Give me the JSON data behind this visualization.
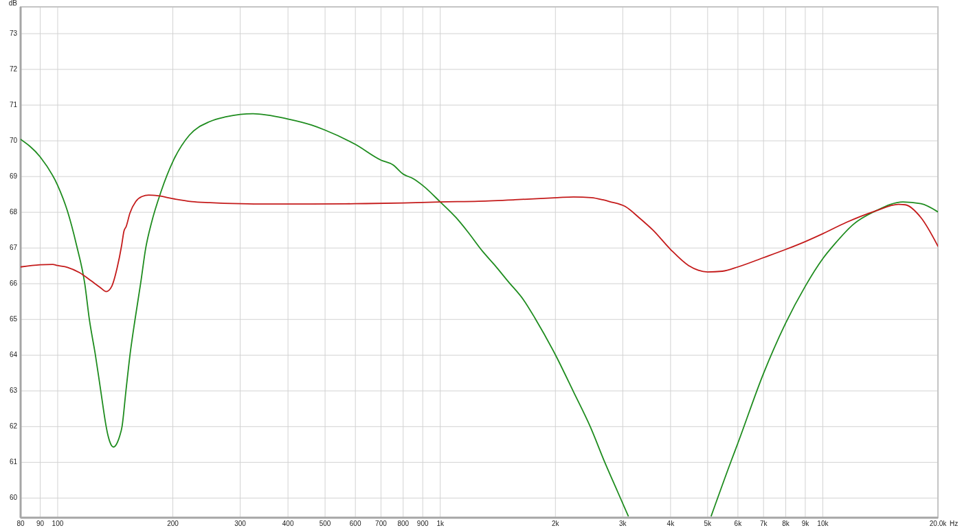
{
  "chart_data": {
    "type": "line",
    "xlabel": "Hz",
    "ylabel": "dB",
    "log": "x",
    "grid": true,
    "xlim": [
      80,
      20000
    ],
    "ylim": [
      59.45,
      73.75
    ],
    "xticks": [
      80,
      90,
      100,
      200,
      300,
      400,
      500,
      600,
      700,
      800,
      900,
      {
        "value": 1000,
        "label": "1k"
      },
      {
        "value": 2000,
        "label": "2k"
      },
      {
        "value": 3000,
        "label": "3k"
      },
      {
        "value": 4000,
        "label": "4k"
      },
      {
        "value": 5000,
        "label": "5k"
      },
      {
        "value": 6000,
        "label": "6k"
      },
      {
        "value": 7000,
        "label": "7k"
      },
      {
        "value": 8000,
        "label": "8k"
      },
      {
        "value": 9000,
        "label": "9k"
      },
      {
        "value": 10000,
        "label": "10k"
      },
      {
        "value": 20000,
        "label": "20.0k"
      }
    ],
    "yticks": [
      60,
      61,
      62,
      63,
      64,
      65,
      66,
      67,
      68,
      69,
      70,
      71,
      72,
      73
    ],
    "series": [
      {
        "color": "#1e8c1e",
        "x": [
          80,
          90,
          100,
          106,
          112,
          117.7,
          121,
          125.5,
          129.6,
          133.9,
          135.3,
          136.7,
          138.3,
          139.9,
          141.5,
          143.3,
          145.3,
          147.3,
          150.8,
          154.5,
          159.3,
          164.7,
          169.9,
          176,
          186,
          200,
          221,
          250,
          275,
          300,
          324,
          400,
          461,
          500,
          600,
          700,
          752,
          800,
          850,
          900,
          1000,
          1100,
          1177,
          1292,
          1383,
          1506,
          1653,
          1770,
          2000,
          2229,
          2469,
          2695,
          2905,
          3100,
          4000,
          5110,
          5757,
          6000,
          7000,
          8000,
          9000,
          10000,
          10761,
          12014,
          13758,
          16198,
          18058,
          20000
        ],
        "values": [
          70.04,
          69.55,
          68.75,
          68.04,
          67.08,
          66.0,
          65.0,
          64.0,
          63.0,
          62.0,
          61.76,
          61.59,
          61.47,
          61.43,
          61.46,
          61.56,
          61.74,
          62.0,
          63.0,
          64.0,
          65.0,
          66.0,
          67.0,
          67.72,
          68.56,
          69.42,
          70.16,
          70.54,
          70.67,
          70.74,
          70.76,
          70.61,
          70.44,
          70.3,
          69.9,
          69.46,
          69.33,
          69.07,
          68.94,
          68.75,
          68.29,
          67.85,
          67.47,
          66.9,
          66.54,
          66.06,
          65.54,
          65.03,
          64.01,
          62.98,
          61.99,
          60.99,
          60.19,
          59.5,
          null,
          59.5,
          61.03,
          61.54,
          63.49,
          64.9,
          65.93,
          66.7,
          67.12,
          67.66,
          68.04,
          68.29,
          68.24,
          68.01
        ]
      },
      {
        "color": "#c41a1a",
        "x": [
          80,
          90,
          97,
          100,
          106,
          114,
          122,
          129,
          134,
          138.5,
          143,
          147,
          149,
          151,
          154.5,
          160,
          166,
          173,
          183,
          200,
          224,
          250,
          300,
          350,
          460,
          600,
          800,
          1000,
          1260,
          1566,
          2026,
          2229,
          2485,
          2659,
          2770,
          3046,
          3317,
          3598,
          4000,
          4457,
          5000,
          5465,
          6000,
          7000,
          8000,
          9000,
          10000,
          11534,
          13758,
          15766,
          16422,
          18058,
          20000
        ],
        "values": [
          66.47,
          66.53,
          66.54,
          66.51,
          66.46,
          66.31,
          66.09,
          65.9,
          65.78,
          65.93,
          66.44,
          67.08,
          67.47,
          67.6,
          67.98,
          68.3,
          68.44,
          68.48,
          68.46,
          68.38,
          68.3,
          68.27,
          68.24,
          68.23,
          68.23,
          68.24,
          68.26,
          68.29,
          68.31,
          68.35,
          68.41,
          68.43,
          68.41,
          68.35,
          68.3,
          68.16,
          67.84,
          67.5,
          66.96,
          66.51,
          66.33,
          66.35,
          66.47,
          66.73,
          66.96,
          67.18,
          67.4,
          67.72,
          68.04,
          68.22,
          68.21,
          67.85,
          67.05
        ]
      }
    ]
  }
}
